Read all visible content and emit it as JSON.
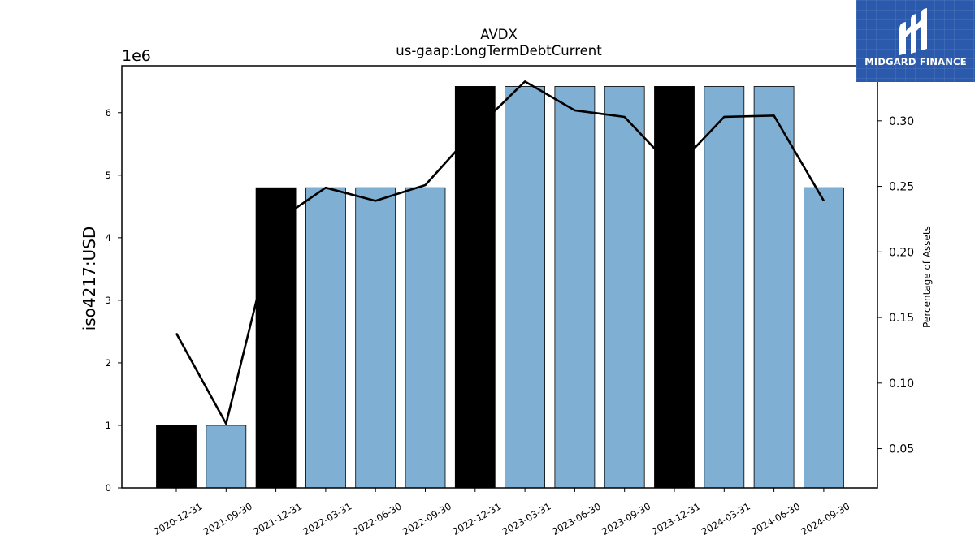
{
  "chart_data": {
    "type": "bar",
    "title": "AVDX",
    "subtitle": "us-gaap:LongTermDebtCurrent",
    "ylabel": "iso4217:USD",
    "y2label": "Percentage of Assets",
    "y_offset_text": "1e6",
    "categories": [
      "2020-12-31",
      "2021-09-30",
      "2021-12-31",
      "2022-03-31",
      "2022-06-30",
      "2022-09-30",
      "2022-12-31",
      "2023-03-31",
      "2023-06-30",
      "2023-09-30",
      "2023-12-31",
      "2024-03-31",
      "2024-06-30",
      "2024-09-30"
    ],
    "series": [
      {
        "type": "bar",
        "values": [
          1000000,
          1000000,
          4800000,
          4800000,
          4800000,
          4800000,
          6420000,
          6420000,
          6420000,
          6420000,
          6420000,
          6420000,
          6420000,
          4800000
        ],
        "colors": [
          "#000000",
          "#7fb0d3",
          "#000000",
          "#7fb0d3",
          "#7fb0d3",
          "#7fb0d3",
          "#000000",
          "#7fb0d3",
          "#7fb0d3",
          "#7fb0d3",
          "#000000",
          "#7fb0d3",
          "#7fb0d3",
          "#7fb0d3"
        ]
      },
      {
        "type": "line",
        "axis": "right",
        "color": "#000000",
        "values": [
          0.138,
          0.069,
          0.223,
          0.249,
          0.239,
          0.251,
          0.293,
          0.33,
          0.308,
          0.303,
          0.263,
          0.303,
          0.304,
          0.239
        ]
      }
    ],
    "ylim": [
      0,
      6750000
    ],
    "y_ticks": [
      0,
      1,
      2,
      3,
      4,
      5,
      6
    ],
    "y2lim": [
      0.02,
      0.342
    ],
    "y2_ticks": [
      "0.05",
      "0.10",
      "0.15",
      "0.20",
      "0.25",
      "0.30"
    ],
    "grid": false,
    "legend": "none"
  },
  "logo": {
    "text": "MIDGARD FINANCE"
  }
}
